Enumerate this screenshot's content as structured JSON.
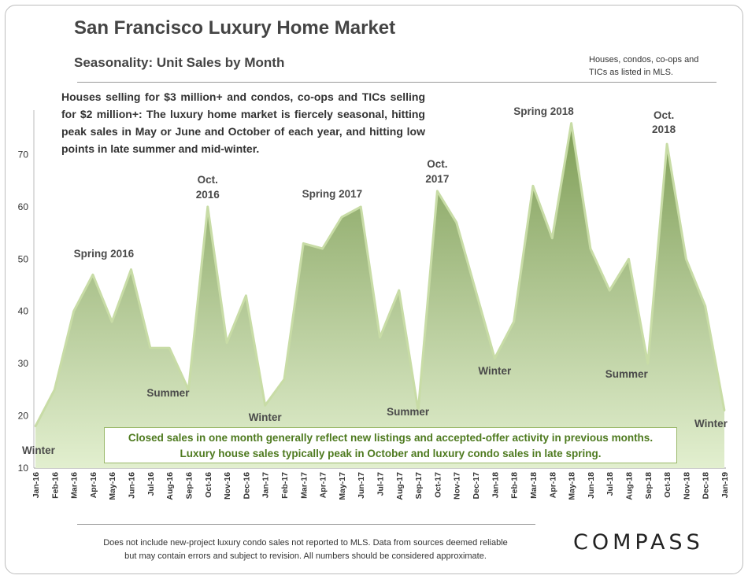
{
  "header": {
    "title": "San Francisco Luxury Home Market",
    "subtitle": "Seasonality:  Unit Sales by Month",
    "source_note": "Houses, condos, co-ops and TICs as listed in MLS."
  },
  "description": "Houses selling for $3 million+ and condos, co-ops and TICs selling for $2 million+: The luxury home market is fiercely seasonal, hitting peak sales in May or June and October of each year, and hitting low points in late summer and mid-winter.",
  "callout": {
    "line1": "Closed sales in one month generally reflect new listings and accepted-offer activity in previous months.",
    "line2": "Luxury house sales typically peak in October and luxury condo sales in late spring."
  },
  "footer": {
    "line1": "Does not include new-project luxury condo sales not reported to MLS.  Data from sources deemed  reliable",
    "line2": "but may contain errors and subject to revision.  All numbers should be considered approximate."
  },
  "brand": "COMPASS",
  "colors": {
    "area_top": "#7f9e57",
    "area_bottom": "#e2efcf",
    "area_stroke": "#c8dca6",
    "callout_text": "#4e7a1f"
  },
  "chart_data": {
    "type": "area",
    "title": "San Francisco Luxury Home Market",
    "xlabel": "",
    "ylabel": "",
    "ylim": [
      10,
      80
    ],
    "yticks": [
      10,
      20,
      30,
      40,
      50,
      60,
      70
    ],
    "grid": false,
    "categories": [
      "Jan-16",
      "Feb-16",
      "Mar-16",
      "Apr-16",
      "May-16",
      "Jun-16",
      "Jul-16",
      "Aug-16",
      "Sep-16",
      "Oct-16",
      "Nov-16",
      "Dec-16",
      "Jan-17",
      "Feb-17",
      "Mar-17",
      "Apr-17",
      "May-17",
      "Jun-17",
      "Jul-17",
      "Aug-17",
      "Sep-17",
      "Oct-17",
      "Nov-17",
      "Dec-17",
      "Jan-18",
      "Feb-18",
      "Mar-18",
      "Apr-18",
      "May-18",
      "Jun-18",
      "Jul-18",
      "Aug-18",
      "Sep-18",
      "Oct-18",
      "Nov-18",
      "Dec-18",
      "Jan-19"
    ],
    "series": [
      {
        "name": "Unit Sales",
        "values": [
          18,
          25,
          40,
          47,
          38,
          48,
          33,
          33,
          25,
          60,
          34,
          43,
          22,
          27,
          53,
          52,
          58,
          60,
          35,
          44,
          21,
          63,
          57,
          44,
          31,
          38,
          64,
          54,
          76,
          52,
          44,
          50,
          30,
          72,
          50,
          41,
          21
        ]
      }
    ],
    "annotations": [
      {
        "text": "Winter",
        "index": 0
      },
      {
        "text": "Spring 2016",
        "index": 3
      },
      {
        "text": "Summer",
        "index": 8
      },
      {
        "text": "Oct.",
        "index": 9
      },
      {
        "text": "2016",
        "index": 9
      },
      {
        "text": "Winter",
        "index": 12
      },
      {
        "text": "Spring 2017",
        "index": 16
      },
      {
        "text": "Summer",
        "index": 20
      },
      {
        "text": "Oct.",
        "index": 21
      },
      {
        "text": "2017",
        "index": 21
      },
      {
        "text": "Winter",
        "index": 24
      },
      {
        "text": "Spring 2018",
        "index": 28
      },
      {
        "text": "Summer",
        "index": 32
      },
      {
        "text": "Oct.",
        "index": 33
      },
      {
        "text": "2018",
        "index": 33
      },
      {
        "text": "Winter",
        "index": 36
      }
    ]
  }
}
